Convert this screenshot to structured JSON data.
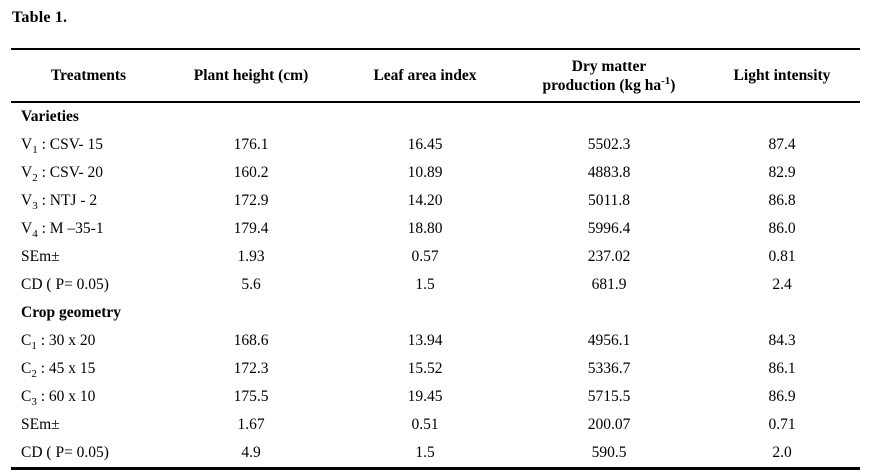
{
  "title": "Table 1.",
  "table": {
    "headers": {
      "treatments": "Treatments",
      "plant_height": "Plant height (cm)",
      "leaf_area": "Leaf area index",
      "dry_matter_line1": "Dry matter",
      "dry_matter_line2_pre": "production (kg ha",
      "dry_matter_sup": "-1",
      "dry_matter_line2_post": ")",
      "light_intensity": "Light intensity"
    },
    "sections": [
      {
        "label": "Varieties",
        "rows": [
          {
            "label_pre": "V",
            "label_sub": "1",
            "label_rest": " : CSV- 15",
            "values": [
              "176.1",
              "16.45",
              "5502.3",
              "87.4"
            ]
          },
          {
            "label_pre": "V",
            "label_sub": "2",
            "label_rest": " : CSV- 20",
            "values": [
              "160.2",
              "10.89",
              "4883.8",
              "82.9"
            ]
          },
          {
            "label_pre": "V",
            "label_sub": "3",
            "label_rest": " : NTJ - 2",
            "values": [
              "172.9",
              "14.20",
              "5011.8",
              "86.8"
            ]
          },
          {
            "label_pre": "V",
            "label_sub": "4",
            "label_rest": " : M –35-1",
            "values": [
              "179.4",
              "18.80",
              "5996.4",
              "86.0"
            ]
          },
          {
            "label_pre": "SEm±",
            "label_sub": "",
            "label_rest": "",
            "values": [
              "1.93",
              "0.57",
              "237.02",
              "0.81"
            ]
          },
          {
            "label_pre": "CD ( P= 0.05)",
            "label_sub": "",
            "label_rest": "",
            "values": [
              "5.6",
              "1.5",
              "681.9",
              "2.4"
            ]
          }
        ]
      },
      {
        "label": "Crop geometry",
        "rows": [
          {
            "label_pre": "C",
            "label_sub": "1",
            "label_rest": " : 30 x 20",
            "values": [
              "168.6",
              "13.94",
              "4956.1",
              "84.3"
            ]
          },
          {
            "label_pre": "C",
            "label_sub": "2",
            "label_rest": " : 45 x 15",
            "values": [
              "172.3",
              "15.52",
              "5336.7",
              "86.1"
            ]
          },
          {
            "label_pre": "C",
            "label_sub": "3",
            "label_rest": " : 60 x 10",
            "values": [
              "175.5",
              "19.45",
              "5715.5",
              "86.9"
            ]
          },
          {
            "label_pre": "SEm±",
            "label_sub": "",
            "label_rest": "",
            "values": [
              "1.67",
              "0.51",
              "200.07",
              "0.71"
            ]
          },
          {
            "label_pre": "CD ( P= 0.05)",
            "label_sub": "",
            "label_rest": "",
            "values": [
              "4.9",
              "1.5",
              "590.5",
              "2.0"
            ]
          }
        ]
      }
    ]
  }
}
